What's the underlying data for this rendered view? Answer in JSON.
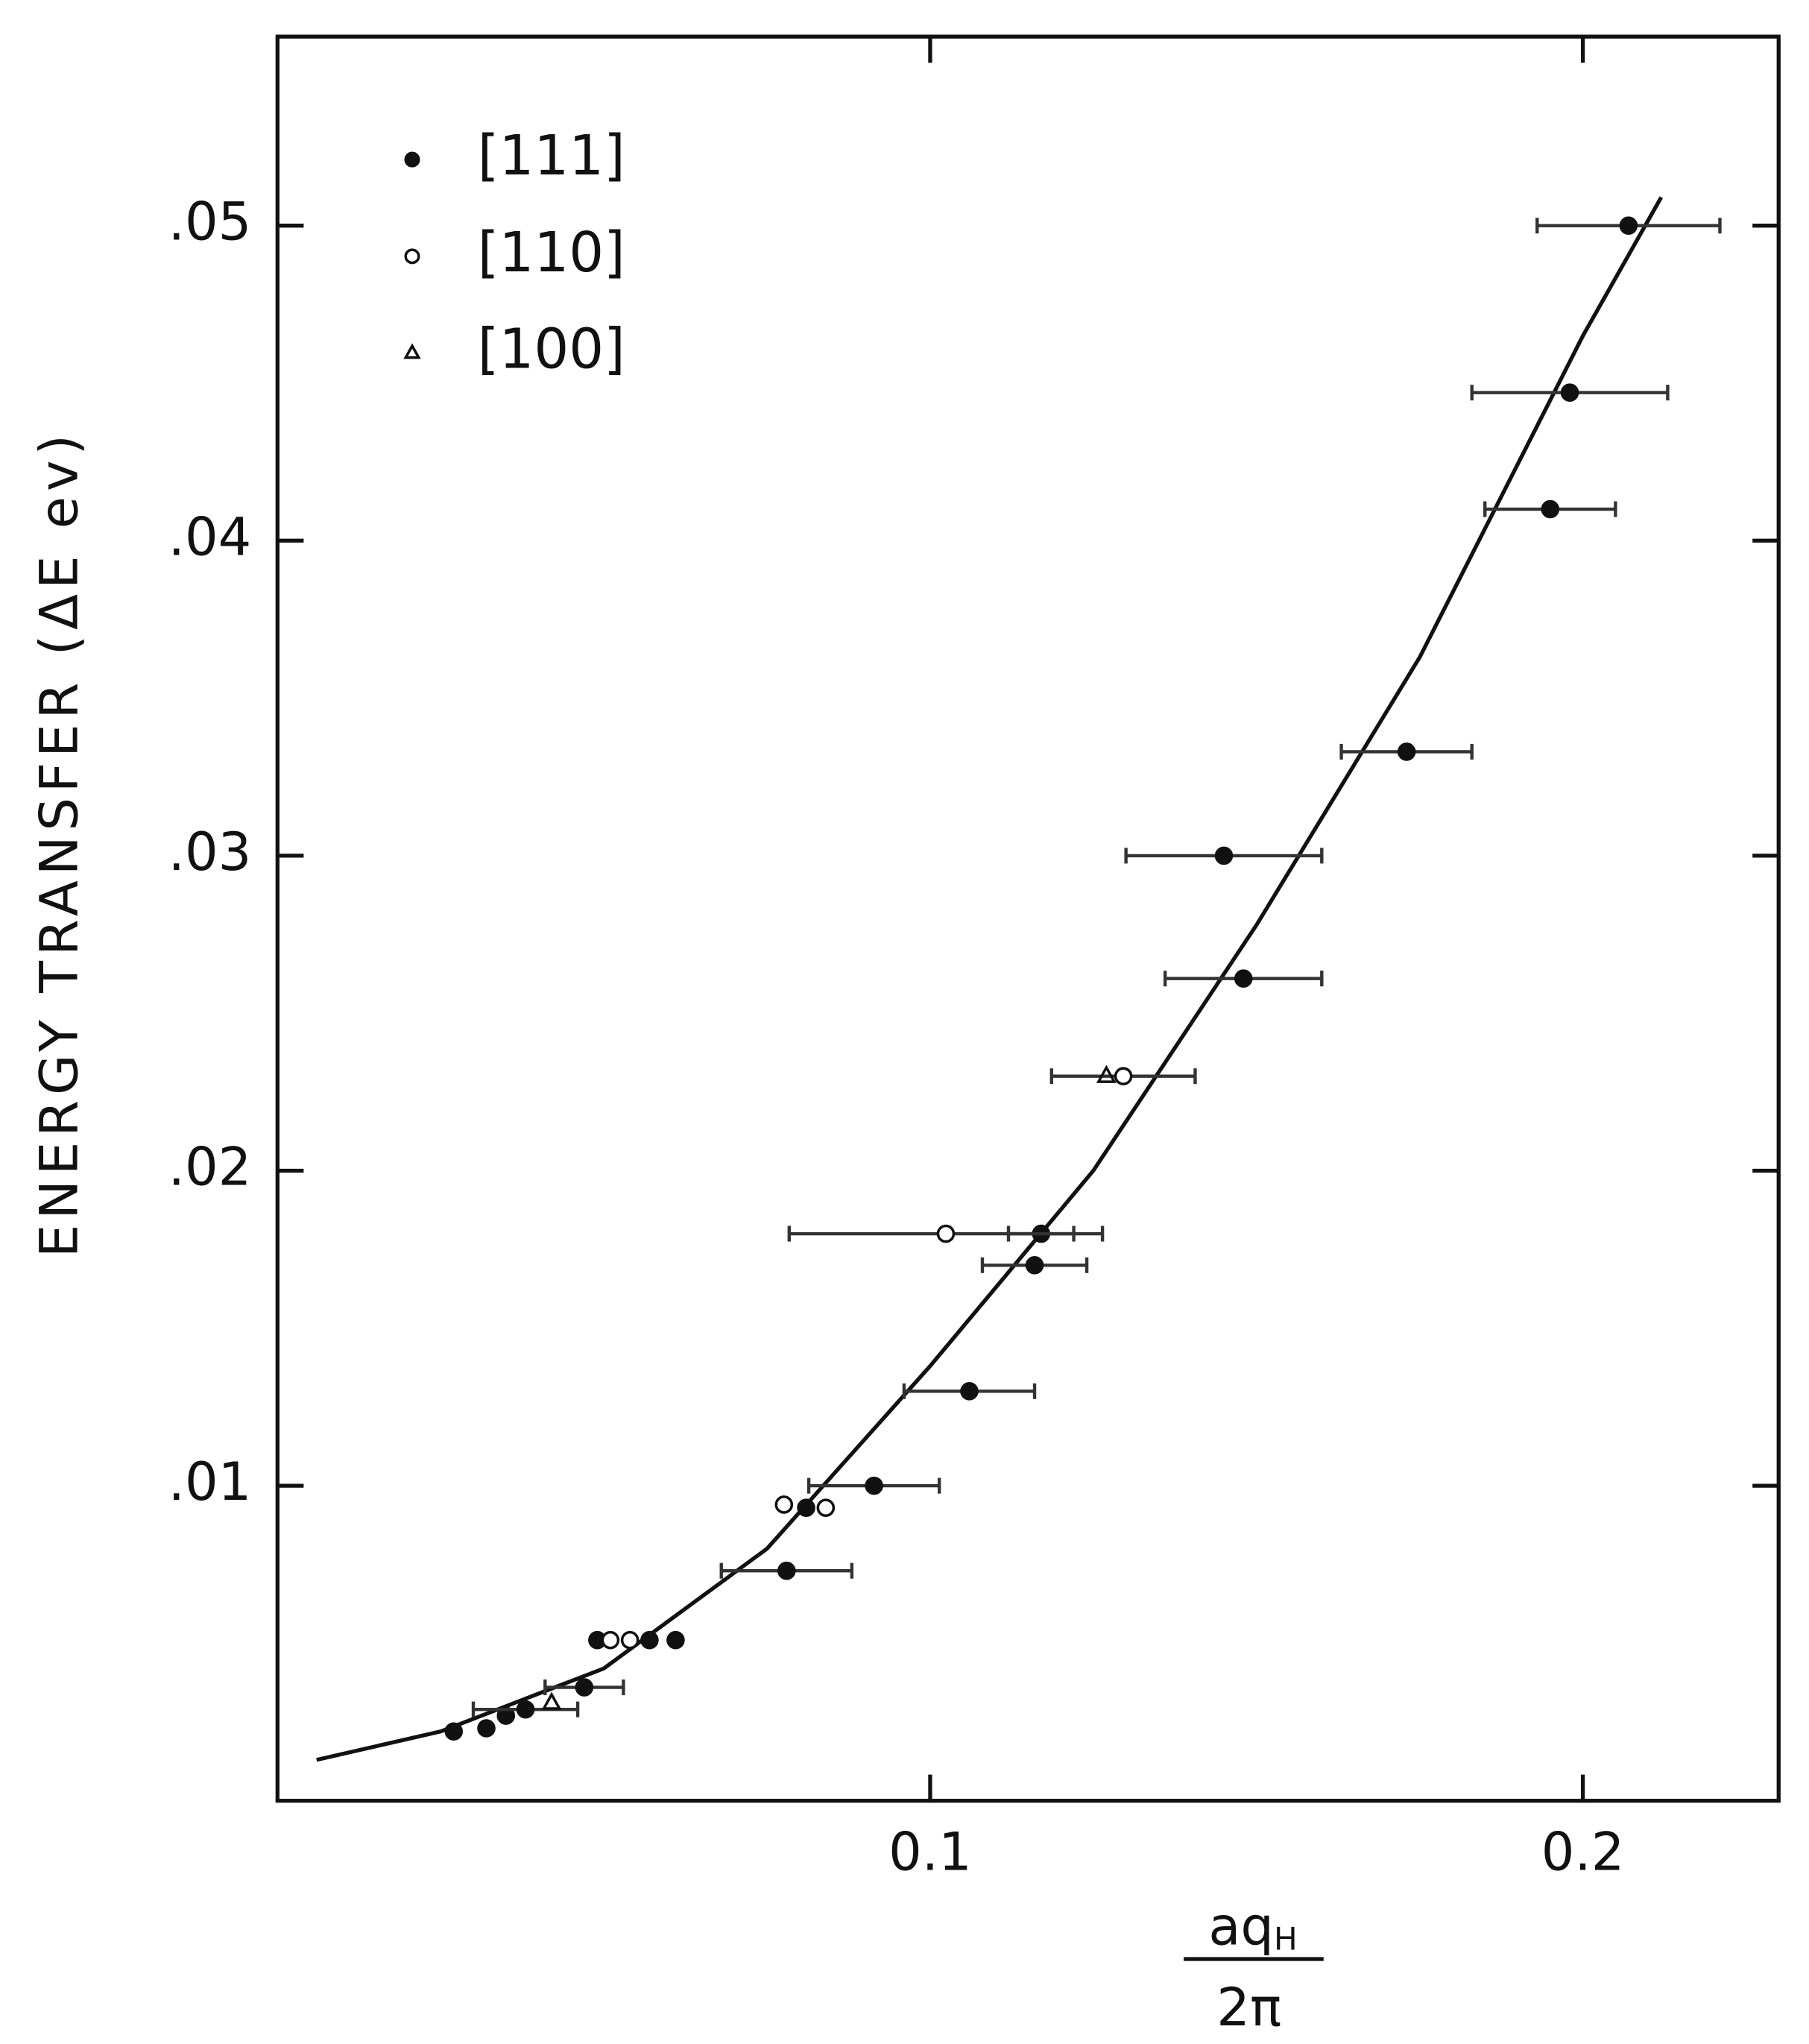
{
  "chart_data": {
    "type": "scatter",
    "y_label": "ENERGY TRANSFER (ΔE ev)",
    "x_label_numerator": "aq",
    "x_label_subscript": "H",
    "x_label_denominator": "2π",
    "xlim": [
      0,
      0.23
    ],
    "ylim": [
      0,
      0.056
    ],
    "xticks": [
      0.1,
      0.2
    ],
    "yticks": [
      {
        "value": 0.01,
        "label": ".01"
      },
      {
        "value": 0.02,
        "label": ".02"
      },
      {
        "value": 0.03,
        "label": ".03"
      },
      {
        "value": 0.04,
        "label": ".04"
      },
      {
        "value": 0.05,
        "label": ".05"
      }
    ],
    "legend": "upper left",
    "series": [
      {
        "name": "[111]",
        "color": "#111111",
        "marker": "filled-circle",
        "x": [
          0.207,
          0.198,
          0.195,
          0.173,
          0.145,
          0.148,
          0.117,
          0.116,
          0.106,
          0.0914,
          0.078,
          0.081,
          0.061,
          0.057,
          0.049,
          0.047,
          0.027,
          0.032,
          0.035,
          0.038
        ],
        "values": [
          0.05,
          0.0447,
          0.041,
          0.0333,
          0.03,
          0.0261,
          0.018,
          0.017,
          0.013,
          0.01,
          0.0073,
          0.0093,
          0.0051,
          0.0051,
          0.0051,
          0.0036,
          0.0022,
          0.0023,
          0.0027,
          0.0029
        ],
        "xerr": [
          0.014,
          0.015,
          0.01,
          0.01,
          0.015,
          0.012,
          0.005,
          0.008,
          0.01,
          0.01,
          0.01,
          null,
          null,
          null,
          null,
          0.006,
          null,
          null,
          null,
          0.008
        ]
      },
      {
        "name": "[110]",
        "color": "#111111",
        "marker": "open-circle",
        "x": [
          0.1024,
          0.1296,
          0.0776,
          0.084,
          0.051,
          0.054
        ],
        "values": [
          0.018,
          0.023,
          0.0094,
          0.0093,
          0.0051,
          0.0051
        ],
        "xerr": [
          0.024,
          0.011,
          null,
          null,
          null,
          null
        ]
      },
      {
        "name": "[100]",
        "color": "#111111",
        "marker": "triangle",
        "x": [
          0.127,
          0.042
        ],
        "values": [
          0.023,
          0.0031
        ],
        "xerr": [
          null,
          null
        ]
      }
    ],
    "fit": {
      "color": "#111111",
      "x": [
        0.006,
        0.025,
        0.05,
        0.075,
        0.1,
        0.125,
        0.15,
        0.175,
        0.2,
        0.212
      ],
      "values": [
        0.0013,
        0.0022,
        0.0042,
        0.008,
        0.0138,
        0.02,
        0.0278,
        0.0363,
        0.0465,
        0.0509
      ]
    }
  }
}
